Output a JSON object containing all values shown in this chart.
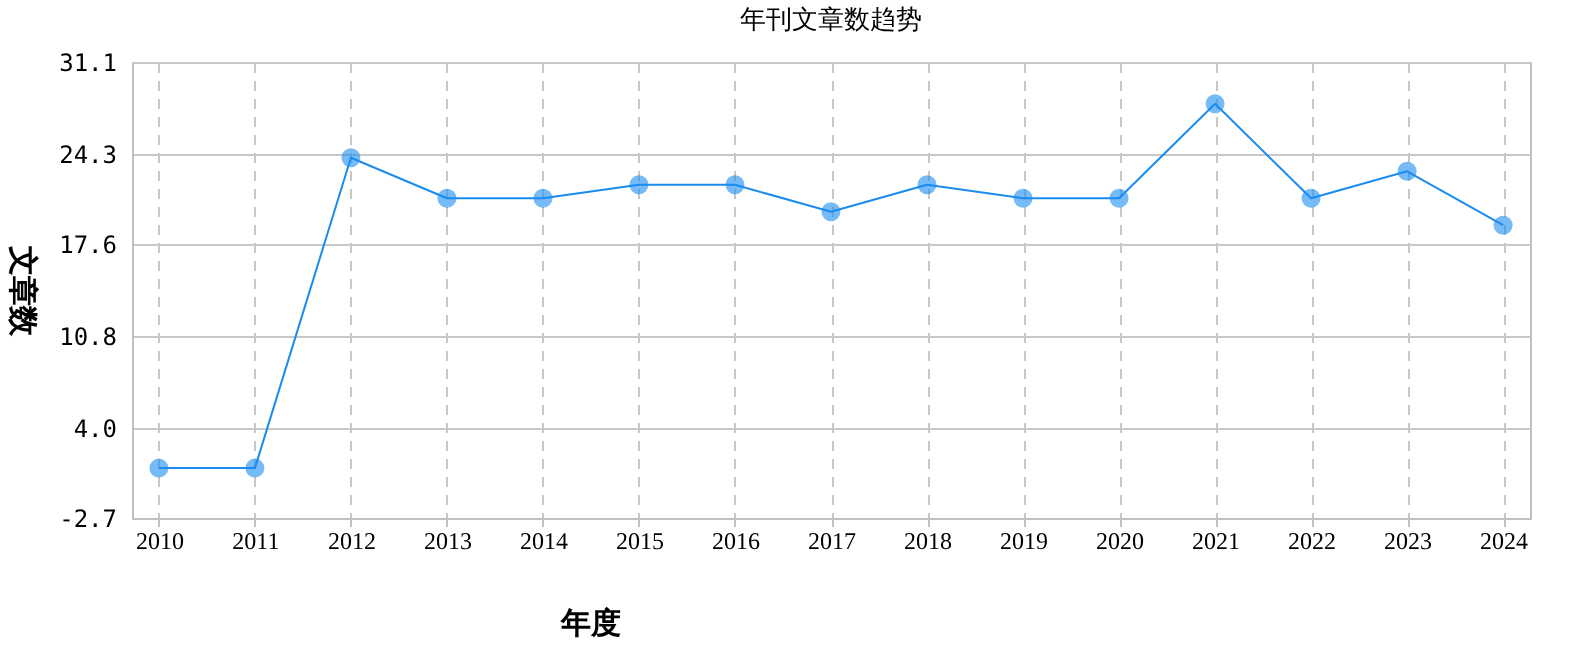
{
  "chart_data": {
    "type": "line",
    "title": "年刊文章数趋势",
    "xlabel": "年度",
    "ylabel": "文章数",
    "categories": [
      "2010",
      "2011",
      "2012",
      "2013",
      "2014",
      "2015",
      "2016",
      "2017",
      "2018",
      "2019",
      "2020",
      "2021",
      "2022",
      "2023",
      "2024"
    ],
    "series": [
      {
        "color": "#1a8cf0",
        "values": [
          1,
          1,
          24,
          21,
          21,
          22,
          22,
          20,
          22,
          21,
          21,
          28,
          21,
          23,
          19
        ]
      }
    ],
    "ylim": [
      -2.7,
      31.1
    ],
    "yticks": [
      -2.7,
      {
        "value": 4,
        "label": "4.0"
      },
      10.8,
      17.6,
      24.3,
      31.1
    ],
    "grid": true,
    "marker": "circle",
    "line_style": "solid"
  }
}
